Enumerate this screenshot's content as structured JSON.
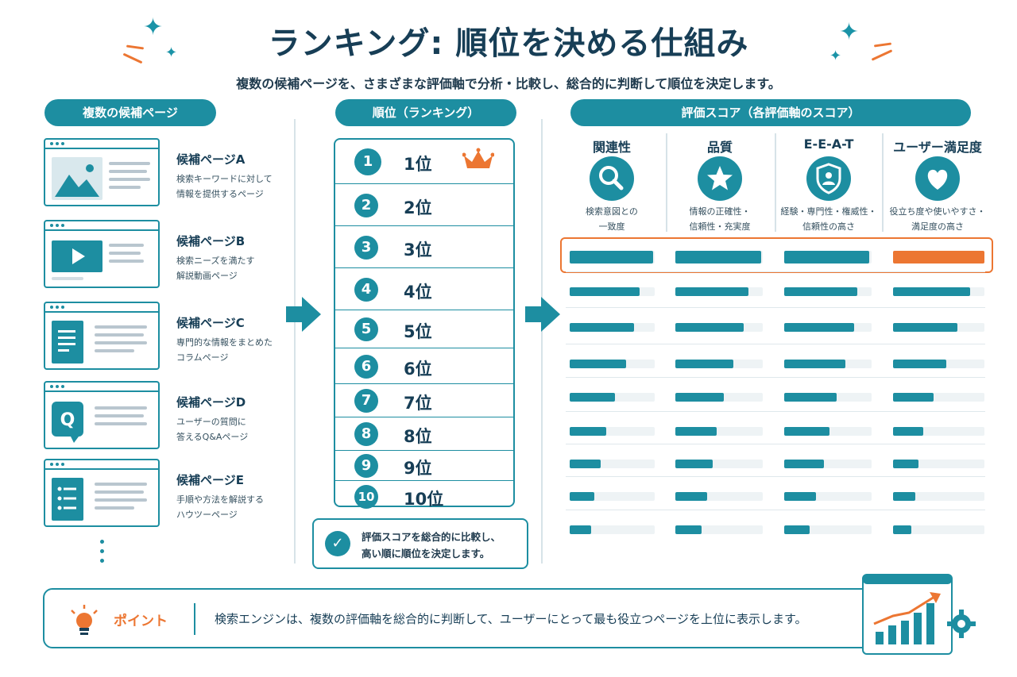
{
  "header": {
    "title": "ランキング: 順位を決める仕組み",
    "subtitle": "複数の候補ページを、さまざまな評価軸で分析・比較し、総合的に判断して順位を決定します。"
  },
  "sections": {
    "candidates": "複数の候補ページ",
    "ranking": "順位（ランキング）",
    "scores": "評価スコア（各評価軸のスコア）"
  },
  "candidates": [
    {
      "title": "候補ページA",
      "desc1": "検索キーワードに対して",
      "desc2": "情報を提供するページ",
      "icon": "image-icon"
    },
    {
      "title": "候補ページB",
      "desc1": "検索ニーズを満たす",
      "desc2": "解説動画ページ",
      "icon": "video-icon"
    },
    {
      "title": "候補ページC",
      "desc1": "専門的な情報をまとめた",
      "desc2": "コラムページ",
      "icon": "document-icon"
    },
    {
      "title": "候補ページD",
      "desc1": "ユーザーの質問に",
      "desc2": "答えるQ&Aページ",
      "icon": "qa-icon"
    },
    {
      "title": "候補ページE",
      "desc1": "手順や方法を解説する",
      "desc2": "ハウツーページ",
      "icon": "list-icon"
    }
  ],
  "ranks": [
    {
      "num": "1",
      "label": "1位"
    },
    {
      "num": "2",
      "label": "2位"
    },
    {
      "num": "3",
      "label": "3位"
    },
    {
      "num": "4",
      "label": "4位"
    },
    {
      "num": "5",
      "label": "5位"
    },
    {
      "num": "6",
      "label": "6位"
    },
    {
      "num": "7",
      "label": "7位"
    },
    {
      "num": "8",
      "label": "8位"
    },
    {
      "num": "9",
      "label": "9位"
    },
    {
      "num": "10",
      "label": "10位"
    }
  ],
  "note": {
    "line1": "評価スコアを総合的に比較し、",
    "line2": "高い順に順位を決定します。"
  },
  "metrics": [
    {
      "name": "関連性",
      "icon": "search-icon",
      "desc1": "検索意図との",
      "desc2": "一致度"
    },
    {
      "name": "品質",
      "icon": "star-icon",
      "desc1": "情報の正確性・",
      "desc2": "信頼性・充実度"
    },
    {
      "name": "E-E-A-T",
      "icon": "shield-user-icon",
      "desc1": "経験・専門性・権威性・",
      "desc2": "信頼性の高さ"
    },
    {
      "name": "ユーザー満足度",
      "icon": "heart-icon",
      "desc1": "役立ち度や使いやすさ・",
      "desc2": "満足度の高さ"
    }
  ],
  "score_levels": [
    [
      0.98,
      0.98,
      0.97,
      1.0
    ],
    [
      0.82,
      0.84,
      0.84,
      0.84
    ],
    [
      0.76,
      0.78,
      0.8,
      0.7
    ],
    [
      0.66,
      0.66,
      0.7,
      0.58
    ],
    [
      0.53,
      0.55,
      0.6,
      0.44
    ],
    [
      0.43,
      0.47,
      0.52,
      0.33
    ],
    [
      0.36,
      0.43,
      0.45,
      0.28
    ],
    [
      0.29,
      0.36,
      0.36,
      0.24
    ],
    [
      0.25,
      0.3,
      0.29,
      0.2
    ]
  ],
  "colors": {
    "accent": "#1d8ea1",
    "highlight": "#ec7632",
    "text": "#173e56"
  },
  "point": {
    "label": "ポイント",
    "text": "検索エンジンは、複数の評価軸を総合的に判断して、ユーザーにとって最も役立つページを上位に表示します。"
  }
}
